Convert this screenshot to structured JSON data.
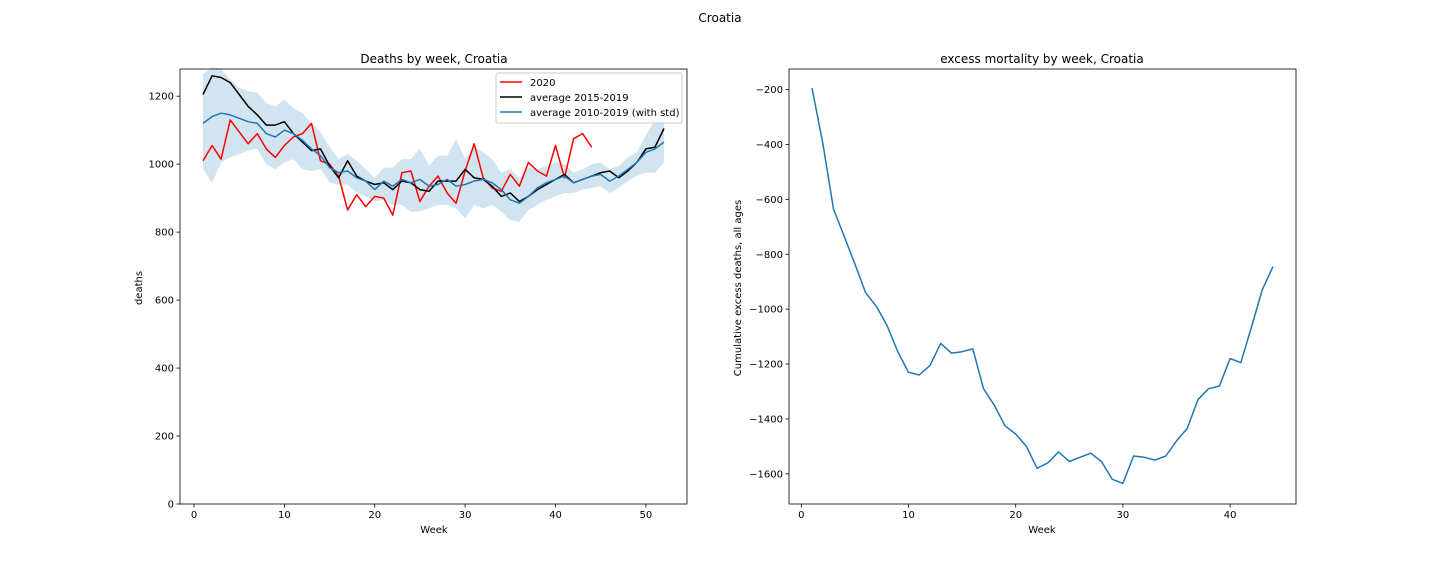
{
  "suptitle": "Croatia",
  "colors": {
    "y2020": "#ff0000",
    "avg_2015_2019": "#000000",
    "avg_2010_2019": "#1f77b4",
    "std_band": "#1f77b4"
  },
  "chart_data": [
    {
      "type": "line",
      "title": "Deaths by week, Croatia",
      "xlabel": "Week",
      "ylabel": "deaths",
      "xlim": [
        -1.55,
        54.55
      ],
      "ylim": [
        0,
        1280
      ],
      "xticks": [
        0,
        10,
        20,
        30,
        40,
        50
      ],
      "yticks": [
        0,
        200,
        400,
        600,
        800,
        1000,
        1200
      ],
      "legend_position": "top-right",
      "legend": [
        "2020",
        "average 2015-2019",
        "average 2010-2019 (with std)"
      ],
      "series": [
        {
          "name": "2020",
          "color": "#ff0000",
          "x": [
            1,
            2,
            3,
            4,
            5,
            6,
            7,
            8,
            9,
            10,
            11,
            12,
            13,
            14,
            15,
            16,
            17,
            18,
            19,
            20,
            21,
            22,
            23,
            24,
            25,
            26,
            27,
            28,
            29,
            30,
            31,
            32,
            33,
            34,
            35,
            36,
            37,
            38,
            39,
            40,
            41,
            42,
            43,
            44
          ],
          "values": [
            1010,
            1055,
            1015,
            1130,
            1095,
            1060,
            1090,
            1045,
            1020,
            1055,
            1080,
            1090,
            1120,
            1010,
            1000,
            965,
            865,
            910,
            875,
            905,
            900,
            850,
            975,
            980,
            890,
            935,
            965,
            915,
            885,
            980,
            1060,
            960,
            930,
            920,
            970,
            935,
            1005,
            980,
            965,
            1055,
            960,
            1075,
            1090,
            1050
          ]
        },
        {
          "name": "average 2015-2019",
          "color": "#000000",
          "x": [
            1,
            2,
            3,
            4,
            5,
            6,
            7,
            8,
            9,
            10,
            11,
            12,
            13,
            14,
            15,
            16,
            17,
            18,
            19,
            20,
            21,
            22,
            23,
            24,
            25,
            26,
            27,
            28,
            29,
            30,
            31,
            32,
            33,
            34,
            35,
            36,
            37,
            38,
            39,
            40,
            41,
            42,
            43,
            44,
            45,
            46,
            47,
            48,
            49,
            50,
            51,
            52
          ],
          "values": [
            1205,
            1260,
            1255,
            1240,
            1205,
            1170,
            1145,
            1115,
            1115,
            1125,
            1090,
            1065,
            1040,
            1045,
            995,
            960,
            1010,
            965,
            950,
            940,
            945,
            925,
            950,
            945,
            925,
            920,
            950,
            950,
            950,
            985,
            960,
            955,
            935,
            905,
            915,
            890,
            905,
            925,
            940,
            955,
            970,
            945,
            955,
            965,
            975,
            980,
            960,
            980,
            1005,
            1045,
            1050,
            1105
          ]
        },
        {
          "name": "average 2010-2019 (with std)",
          "color": "#1f77b4",
          "x": [
            1,
            2,
            3,
            4,
            5,
            6,
            7,
            8,
            9,
            10,
            11,
            12,
            13,
            14,
            15,
            16,
            17,
            18,
            19,
            20,
            21,
            22,
            23,
            24,
            25,
            26,
            27,
            28,
            29,
            30,
            31,
            32,
            33,
            34,
            35,
            36,
            37,
            38,
            39,
            40,
            41,
            42,
            43,
            44,
            45,
            46,
            47,
            48,
            49,
            50,
            51,
            52
          ],
          "values": [
            1120,
            1140,
            1150,
            1145,
            1135,
            1125,
            1120,
            1090,
            1080,
            1100,
            1090,
            1070,
            1045,
            1025,
            990,
            975,
            980,
            960,
            950,
            925,
            950,
            935,
            955,
            945,
            955,
            935,
            940,
            955,
            935,
            940,
            950,
            955,
            945,
            925,
            895,
            885,
            905,
            930,
            945,
            955,
            965,
            945,
            955,
            965,
            970,
            950,
            965,
            985,
            1005,
            1035,
            1045,
            1065
          ],
          "std_lower": [
            985,
            945,
            1005,
            1020,
            1030,
            1040,
            1045,
            1000,
            985,
            1005,
            1015,
            985,
            980,
            985,
            945,
            940,
            940,
            915,
            905,
            890,
            895,
            880,
            880,
            860,
            860,
            870,
            880,
            880,
            870,
            840,
            880,
            870,
            880,
            860,
            835,
            830,
            865,
            880,
            895,
            905,
            915,
            915,
            925,
            930,
            935,
            915,
            930,
            950,
            965,
            975,
            975,
            1005
          ],
          "std_upper": [
            1265,
            1285,
            1280,
            1250,
            1225,
            1215,
            1210,
            1180,
            1170,
            1190,
            1165,
            1150,
            1120,
            1095,
            1050,
            1015,
            1030,
            1010,
            985,
            960,
            990,
            990,
            1015,
            1015,
            1045,
            995,
            1025,
            1025,
            1075,
            1015,
            1050,
            1035,
            1015,
            975,
            985,
            960,
            990,
            985,
            995,
            1005,
            1000,
            975,
            985,
            1000,
            1005,
            985,
            995,
            1020,
            1035,
            1085,
            1130,
            1135
          ]
        }
      ]
    },
    {
      "type": "line",
      "title": "excess mortality by week, Croatia",
      "xlabel": "Week",
      "ylabel": "Cumulative excess deaths, all ages",
      "xlim": [
        -1.15,
        46.15
      ],
      "ylim": [
        -1710,
        -125
      ],
      "xticks": [
        0,
        10,
        20,
        30,
        40
      ],
      "yticks": [
        -1600,
        -1400,
        -1200,
        -1000,
        -800,
        -600,
        -400,
        -200
      ],
      "series": [
        {
          "color": "#1f77b4",
          "x": [
            1,
            2,
            3,
            4,
            5,
            6,
            7,
            8,
            9,
            10,
            11,
            12,
            13,
            14,
            15,
            16,
            17,
            18,
            19,
            20,
            21,
            22,
            23,
            24,
            25,
            26,
            27,
            28,
            29,
            30,
            31,
            32,
            33,
            34,
            35,
            36,
            37,
            38,
            39,
            40,
            41,
            42,
            43,
            44
          ],
          "values": [
            -195,
            -395,
            -635,
            -735,
            -835,
            -940,
            -990,
            -1060,
            -1155,
            -1230,
            -1240,
            -1205,
            -1125,
            -1160,
            -1155,
            -1145,
            -1290,
            -1350,
            -1425,
            -1455,
            -1500,
            -1580,
            -1560,
            -1520,
            -1555,
            -1540,
            -1525,
            -1555,
            -1620,
            -1635,
            -1535,
            -1540,
            -1550,
            -1535,
            -1480,
            -1435,
            -1330,
            -1290,
            -1280,
            -1180,
            -1195,
            -1065,
            -930,
            -845
          ]
        }
      ]
    }
  ]
}
